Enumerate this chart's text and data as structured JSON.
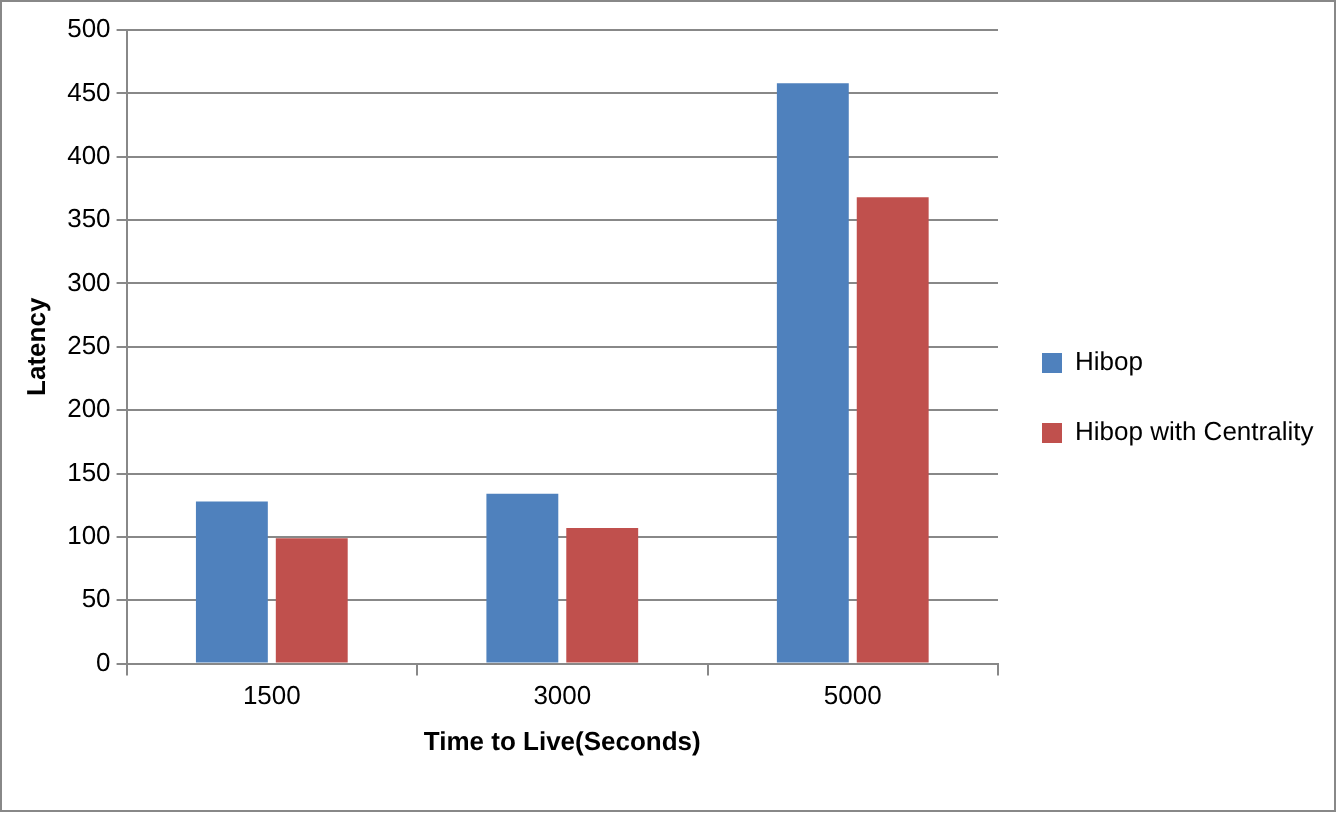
{
  "chart_data": {
    "type": "bar",
    "xlabel": "Time to Live(Seconds)",
    "ylabel": "Latency",
    "categories": [
      "1500",
      "3000",
      "5000"
    ],
    "series": [
      {
        "name": "Hibop",
        "color": "#4f81bd",
        "values": [
          128,
          134,
          458
        ]
      },
      {
        "name": "Hibop with Centrality",
        "color": "#c0504d",
        "values": [
          99,
          107,
          368
        ]
      }
    ],
    "ylim": [
      0,
      500
    ],
    "yticks": [
      0,
      50,
      100,
      150,
      200,
      250,
      300,
      350,
      400,
      450,
      500
    ],
    "grid": "y",
    "legend": "right"
  }
}
